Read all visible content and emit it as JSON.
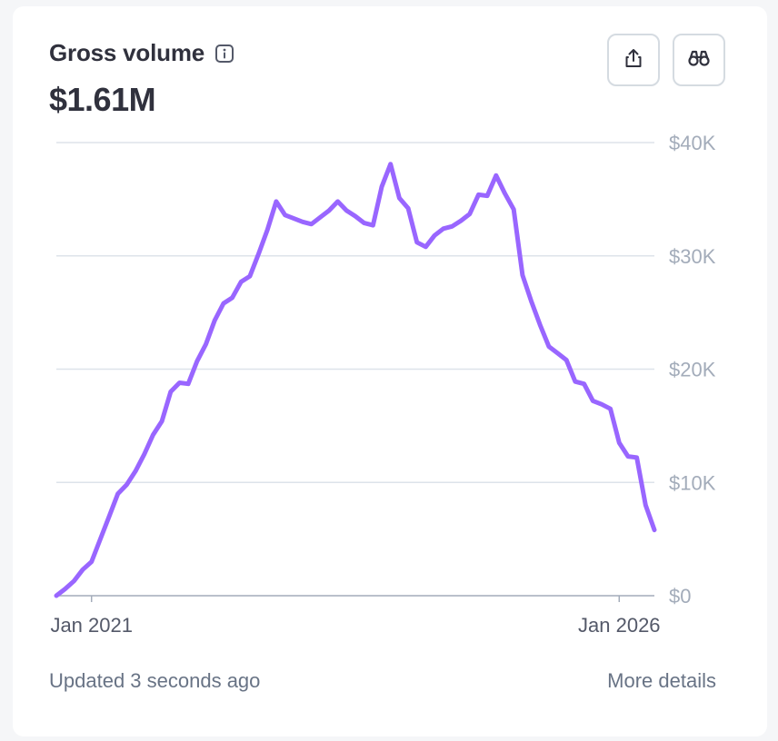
{
  "widget": {
    "title": "Gross volume",
    "total": "$1.61M",
    "info_icon": "info-icon",
    "share_icon": "share-icon",
    "explore_icon": "binoculars-icon",
    "updated_text": "Updated 3 seconds ago",
    "more_details_label": "More details",
    "accent_color": "#9966ff"
  },
  "chart_data": {
    "type": "line",
    "ylim": [
      0,
      40000
    ],
    "yticks": [
      {
        "value": 40000,
        "label": "$40K"
      },
      {
        "value": 30000,
        "label": "$30K"
      },
      {
        "value": 20000,
        "label": "$20K"
      },
      {
        "value": 10000,
        "label": "$10K"
      },
      {
        "value": 0,
        "label": "$0"
      }
    ],
    "xticks": [
      {
        "label": "Jan 2021",
        "index": 4
      },
      {
        "label": "Jan 2026",
        "index": 64
      }
    ],
    "grid": true,
    "series": [
      {
        "color": "#9966ff",
        "values": [
          0,
          600,
          1300,
          2300,
          3000,
          5000,
          7000,
          9000,
          9800,
          11000,
          12500,
          14200,
          15400,
          18000,
          18800,
          18700,
          20700,
          22200,
          24300,
          25800,
          26300,
          27700,
          28200,
          30200,
          32300,
          34800,
          33600,
          33300,
          33000,
          32800,
          33400,
          34000,
          34800,
          34000,
          33500,
          32900,
          32700,
          36100,
          38100,
          35100,
          34200,
          31200,
          30800,
          31800,
          32400,
          32600,
          33100,
          33700,
          35400,
          35300,
          37100,
          35500,
          34100,
          28300,
          26000,
          23900,
          22000,
          21400,
          20800,
          18900,
          18700,
          17200,
          16900,
          16500,
          13500,
          12300,
          12200,
          8000,
          5800
        ]
      }
    ]
  }
}
